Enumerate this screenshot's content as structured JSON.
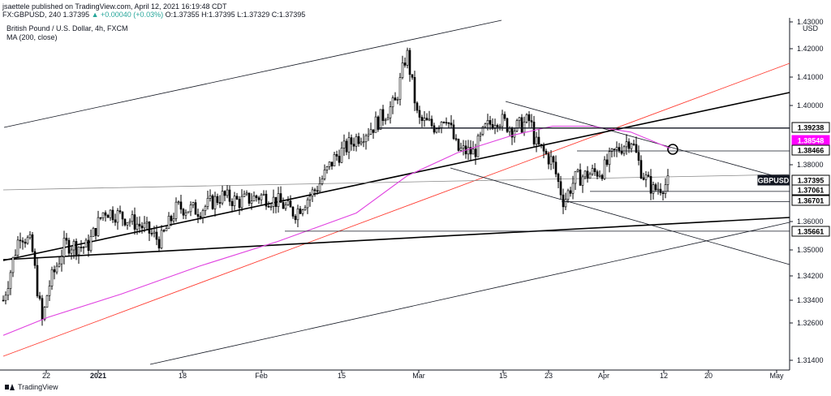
{
  "header": {
    "line1": "jsaettele published on TradingView.com, April 12, 2021 16:19:48 CDT",
    "line2_symbol": "FX:GBPUSD, 240",
    "line2_ohlc": "1.37395",
    "line2_change": "▲ +0.00040 (+0.03%)",
    "line2_rest": "O:1.37355 H:1.37395 L:1.37329 C:1.37395"
  },
  "legend": {
    "title": "British Pound / U.S. Dollar, 4h, FXCM",
    "ma": "MA (200, close)"
  },
  "currency": "USD",
  "footer": {
    "brand": "TradingView"
  },
  "colors": {
    "background": "#ffffff",
    "candles": "#000000",
    "ma_line": "#e040e0",
    "red_channel": "#ff3b30",
    "symbol_label_bg": "#131722",
    "ma_label_bg": "#ff00ff",
    "level_label_bg": "#131722"
  },
  "chart_data": {
    "type": "candlestick",
    "title": "British Pound / U.S. Dollar, 4h, FXCM",
    "symbol": "GBPUSD",
    "x_ticks": [
      "22",
      "2021",
      "18",
      "Feb",
      "15",
      "Mar",
      "15",
      "23",
      "Apr",
      "12",
      "20",
      "May"
    ],
    "y_ticks": [
      "1.43000",
      "1.42000",
      "1.41000",
      "1.40000",
      "1.38000",
      "1.36000",
      "1.35000",
      "1.34200",
      "1.33400",
      "1.32600",
      "1.31400"
    ],
    "ylim": [
      1.314,
      1.43
    ],
    "grid": false,
    "series": [
      {
        "name": "GBPUSD",
        "close_path": [
          [
            "Dec 14",
            1.334
          ],
          [
            "Dec 17",
            1.356
          ],
          [
            "Dec 19",
            1.352
          ],
          [
            "Dec 21",
            1.326
          ],
          [
            "Dec 22",
            1.338
          ],
          [
            "Dec 25",
            1.352
          ],
          [
            "Dec 29",
            1.351
          ],
          [
            "Jan 1",
            1.364
          ],
          [
            "Jan 4",
            1.362
          ],
          [
            "Jan 8",
            1.358
          ],
          [
            "Jan 11",
            1.353
          ],
          [
            "Jan 14",
            1.365
          ],
          [
            "Jan 18",
            1.364
          ],
          [
            "Jan 22",
            1.369
          ],
          [
            "Jan 25",
            1.367
          ],
          [
            "Jan 29",
            1.369
          ],
          [
            "Feb 1",
            1.367
          ],
          [
            "Feb 4",
            1.363
          ],
          [
            "Feb 8",
            1.372
          ],
          [
            "Feb 11",
            1.382
          ],
          [
            "Feb 15",
            1.389
          ],
          [
            "Feb 18",
            1.393
          ],
          [
            "Feb 22",
            1.401
          ],
          [
            "Feb 24",
            1.419
          ],
          [
            "Feb 26",
            1.395
          ],
          [
            "Mar 1",
            1.393
          ],
          [
            "Mar 3",
            1.397
          ],
          [
            "Mar 5",
            1.385
          ],
          [
            "Mar 8",
            1.384
          ],
          [
            "Mar 10",
            1.392
          ],
          [
            "Mar 12",
            1.396
          ],
          [
            "Mar 15",
            1.392
          ],
          [
            "Mar 18",
            1.395
          ],
          [
            "Mar 19",
            1.387
          ],
          [
            "Mar 22",
            1.381
          ],
          [
            "Mar 24",
            1.367
          ],
          [
            "Mar 26",
            1.375
          ],
          [
            "Mar 29",
            1.377
          ],
          [
            "Mar 31",
            1.378
          ],
          [
            "Apr 2",
            1.384
          ],
          [
            "Apr 5",
            1.389
          ],
          [
            "Apr 7",
            1.377
          ],
          [
            "Apr 9",
            1.371
          ],
          [
            "Apr 12",
            1.37395
          ]
        ]
      },
      {
        "name": "MA (200, close)",
        "path": [
          [
            "Dec 14",
            1.322
          ],
          [
            "Dec 22",
            1.328
          ],
          [
            "Jan 4",
            1.336
          ],
          [
            "Jan 18",
            1.345
          ],
          [
            "Feb 1",
            1.353
          ],
          [
            "Feb 15",
            1.363
          ],
          [
            "Feb 24",
            1.376
          ],
          [
            "Mar 5",
            1.384
          ],
          [
            "Mar 15",
            1.39
          ],
          [
            "Mar 22",
            1.393
          ],
          [
            "Mar 29",
            1.393
          ],
          [
            "Apr 5",
            1.391
          ],
          [
            "Apr 12",
            1.3855
          ]
        ]
      }
    ],
    "price_labels": [
      {
        "text": "1.39238",
        "kind": "level"
      },
      {
        "text": "1.38548",
        "kind": "ma"
      },
      {
        "text": "1.38466",
        "kind": "level"
      },
      {
        "text": "GBPUSD",
        "kind": "symbol"
      },
      {
        "text": "1.37395",
        "kind": "level"
      },
      {
        "text": "1.37061",
        "kind": "level"
      },
      {
        "text": "1.36701",
        "kind": "level"
      },
      {
        "text": "1.35661",
        "kind": "level"
      }
    ]
  }
}
